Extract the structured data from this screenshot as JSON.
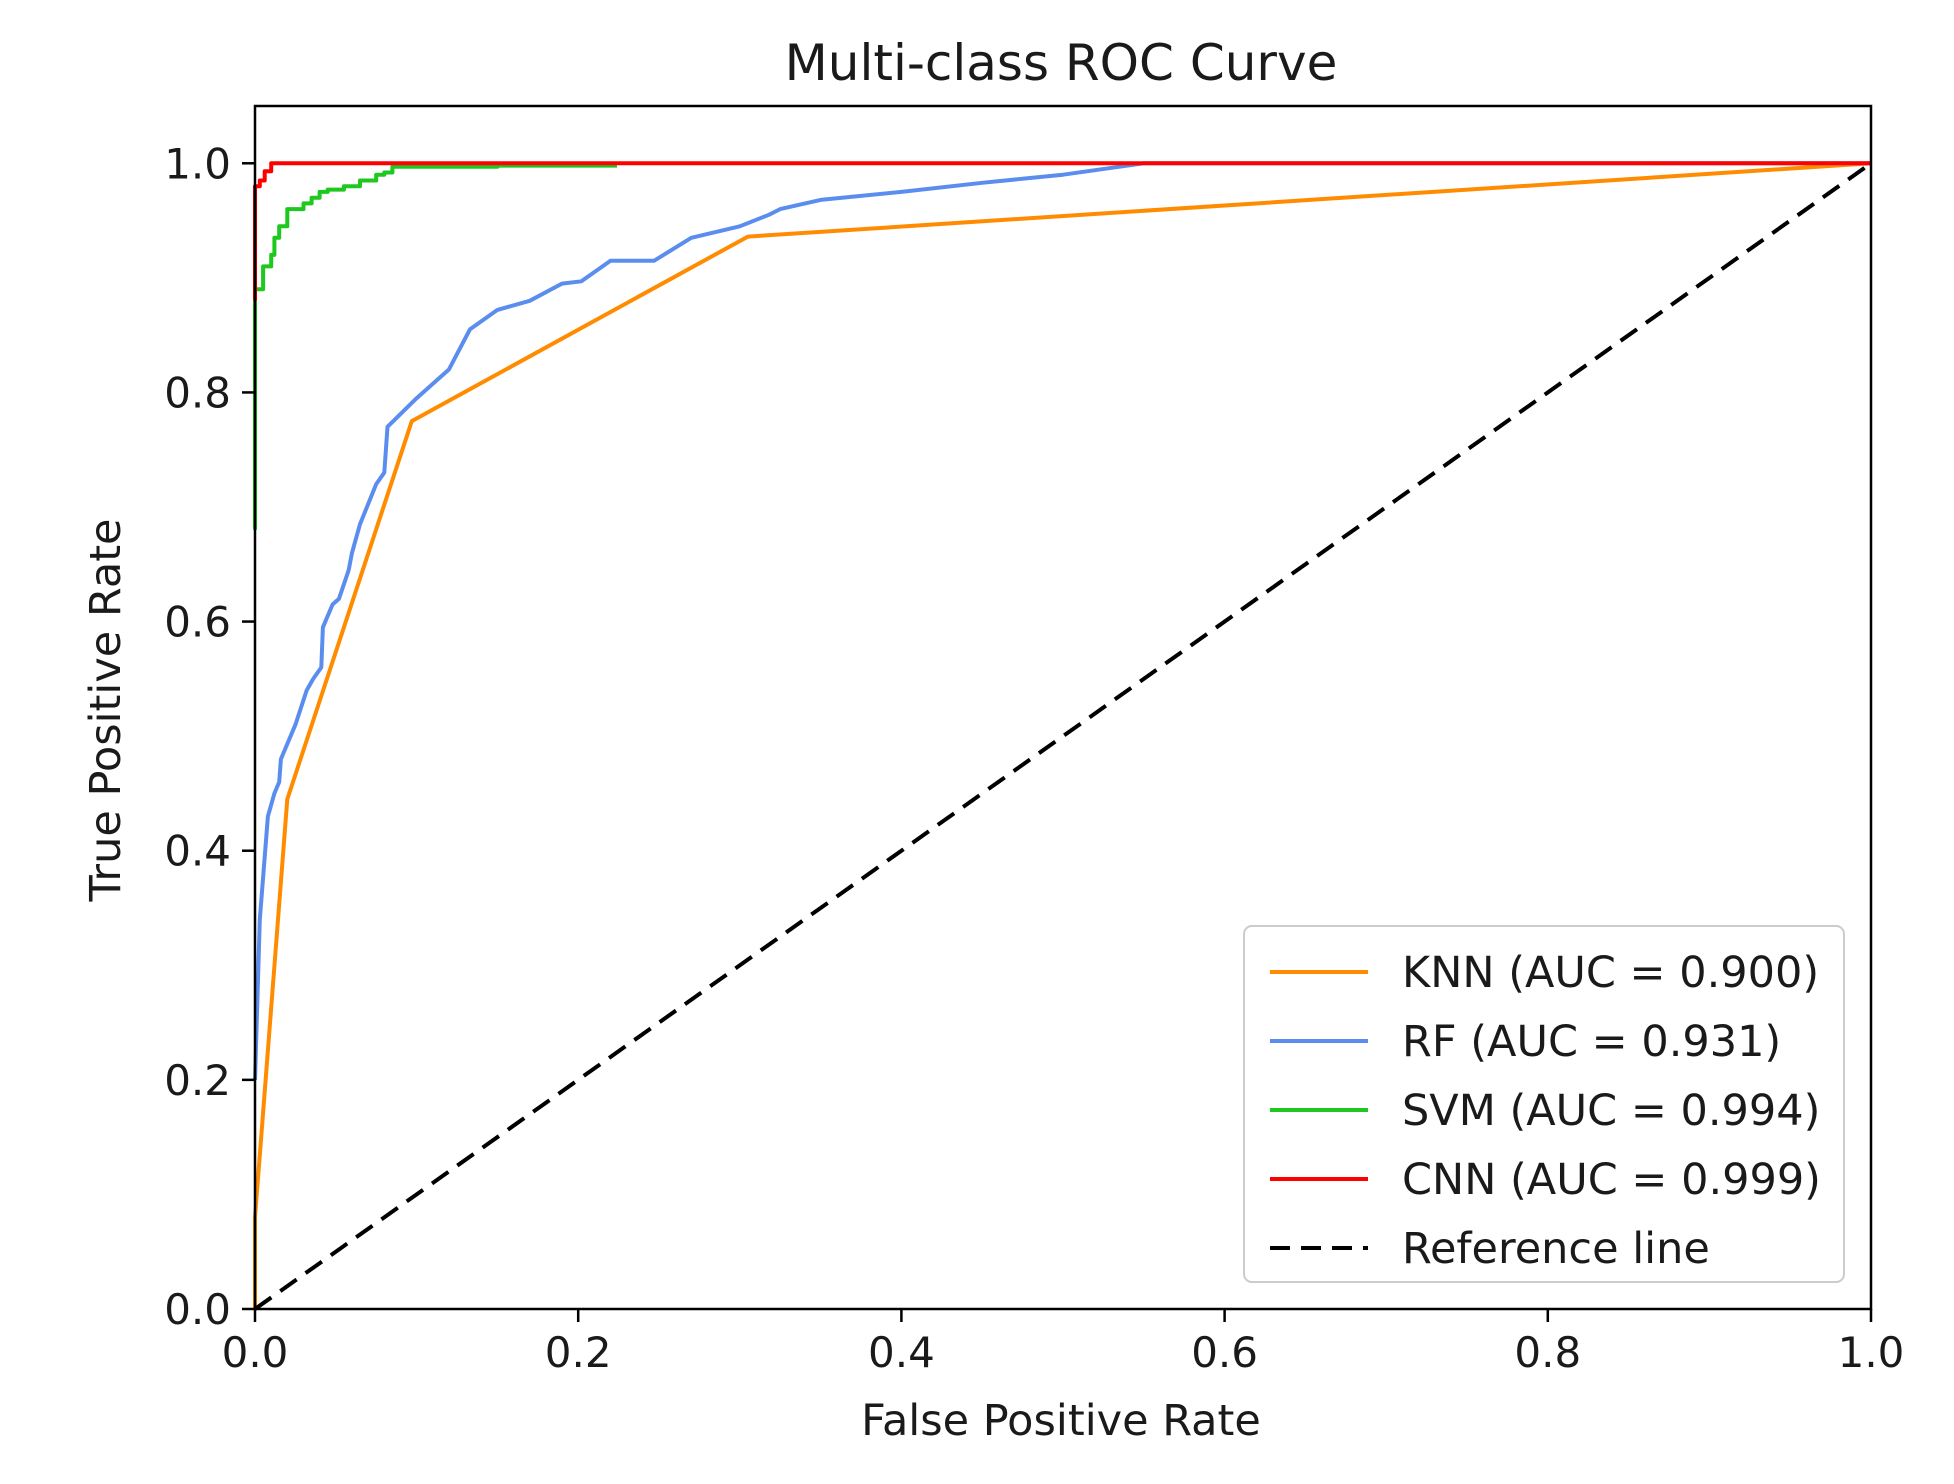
{
  "chart_data": {
    "type": "line",
    "title": "Multi-class ROC Curve",
    "xlabel": "False Positive Rate",
    "ylabel": "True Positive Rate",
    "xlim": [
      0.0,
      1.0
    ],
    "ylim": [
      0.0,
      1.05
    ],
    "xticks": [
      0.0,
      0.2,
      0.4,
      0.6,
      0.8,
      1.0
    ],
    "yticks": [
      0.0,
      0.2,
      0.4,
      0.6,
      0.8,
      1.0
    ],
    "xtick_labels": [
      "0.0",
      "0.2",
      "0.4",
      "0.6",
      "0.8",
      "1.0"
    ],
    "ytick_labels": [
      "0.0",
      "0.2",
      "0.4",
      "0.6",
      "0.8",
      "1.0"
    ],
    "grid": false,
    "legend_position": "lower-right",
    "series": [
      {
        "name": "KNN (AUC = 0.900)",
        "color": "#ff8c00",
        "dash": "solid",
        "x": [
          0.0,
          0.0,
          0.02,
          0.097,
          0.305,
          1.0
        ],
        "y": [
          0.0,
          0.08,
          0.445,
          0.775,
          0.936,
          1.0
        ]
      },
      {
        "name": "RF (AUC = 0.931)",
        "color": "#5b8def",
        "dash": "solid",
        "x": [
          0.0,
          0.003,
          0.008,
          0.012,
          0.015,
          0.016,
          0.025,
          0.032,
          0.036,
          0.041,
          0.042,
          0.048,
          0.052,
          0.058,
          0.06,
          0.065,
          0.075,
          0.08,
          0.082,
          0.1,
          0.12,
          0.133,
          0.15,
          0.17,
          0.19,
          0.202,
          0.22,
          0.247,
          0.27,
          0.3,
          0.318,
          0.325,
          0.35,
          0.4,
          0.45,
          0.5,
          0.55,
          1.0
        ],
        "y": [
          0.2,
          0.34,
          0.43,
          0.45,
          0.46,
          0.48,
          0.51,
          0.54,
          0.55,
          0.56,
          0.595,
          0.615,
          0.62,
          0.645,
          0.66,
          0.685,
          0.72,
          0.73,
          0.77,
          0.795,
          0.82,
          0.855,
          0.872,
          0.88,
          0.895,
          0.897,
          0.915,
          0.915,
          0.935,
          0.945,
          0.955,
          0.96,
          0.968,
          0.975,
          0.983,
          0.99,
          1.0,
          1.0
        ]
      },
      {
        "name": "SVM (AUC = 0.994)",
        "color": "#1ec81e",
        "dash": "solid",
        "steps": true,
        "x": [
          0.0,
          0.0,
          0.005,
          0.01,
          0.012,
          0.015,
          0.02,
          0.03,
          0.035,
          0.04,
          0.045,
          0.055,
          0.065,
          0.075,
          0.08,
          0.085,
          0.15,
          0.16,
          0.224
        ],
        "y": [
          0.68,
          0.86,
          0.89,
          0.91,
          0.92,
          0.935,
          0.945,
          0.96,
          0.965,
          0.97,
          0.975,
          0.977,
          0.98,
          0.985,
          0.99,
          0.992,
          0.997,
          0.998,
          0.998
        ]
      },
      {
        "name": "CNN (AUC = 0.999)",
        "color": "#ff0000",
        "dash": "solid",
        "steps": true,
        "x": [
          0.0,
          0.003,
          0.006,
          0.01,
          0.058,
          1.0
        ],
        "y": [
          0.88,
          0.98,
          0.985,
          0.993,
          1.0,
          1.0
        ]
      },
      {
        "name": "Reference line",
        "color": "#000000",
        "dash": "dashed",
        "x": [
          0.0,
          1.0
        ],
        "y": [
          0.0,
          1.0
        ]
      }
    ]
  }
}
